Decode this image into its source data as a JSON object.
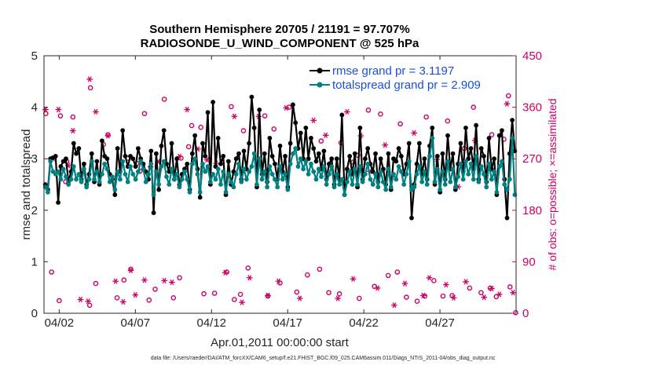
{
  "colors": {
    "rmse": "#000000",
    "spread": "#008080",
    "obs": "#cc0066",
    "legend_text": "#1a4fd6",
    "axis": "#262626"
  },
  "chart_data": {
    "type": "line",
    "title": [
      "Southern Hemisphere 20705 / 21191 = 97.707%",
      "RADIOSONDE_U_WIND_COMPONENT @ 525 hPa"
    ],
    "xlabel": "Apr.01,2011 00:00:00 start",
    "ylabel": "rmse and totalspread",
    "ylabel_right": "# of obs: o=possible; ×=assimilated",
    "xlim": [
      0,
      31
    ],
    "ylim": [
      0,
      5
    ],
    "ylim_right": [
      0,
      450
    ],
    "xtick_values": [
      1,
      6,
      11,
      16,
      21,
      26
    ],
    "xtick_labels": [
      "04/02",
      "04/07",
      "04/12",
      "04/17",
      "04/22",
      "04/27"
    ],
    "ytick_values": [
      0,
      1,
      2,
      3,
      4,
      5
    ],
    "ytick_labels": [
      "0",
      "1",
      "2",
      "3",
      "4",
      "5"
    ],
    "ytick_right_values": [
      0,
      90,
      180,
      270,
      360,
      450
    ],
    "ytick_right_labels": [
      "0",
      "90",
      "180",
      "270",
      "360",
      "450"
    ],
    "legend": [
      "rmse grand pr = 3.1197",
      "totalspread grand pr = 2.909"
    ],
    "legend_position": "top-right",
    "footnote": "data file: /Users/raeder/DAI/ATM_forcXX/CAM6_setup/f.e21.FHIST_BGC.f09_025.CAM6assim.011/Diags_NTrS_2011-04/obs_diag_output.nc",
    "series": [
      {
        "name": "rmse",
        "values": [
          2.5,
          2.4,
          3.0,
          3.02,
          3.05,
          2.15,
          2.85,
          2.95,
          3.0,
          2.55,
          2.75,
          3.3,
          3.1,
          3.2,
          2.6,
          2.9,
          2.5,
          2.7,
          3.1,
          2.55,
          2.95,
          2.5,
          3.35,
          3.05,
          3.0,
          2.7,
          2.6,
          2.3,
          3.2,
          2.75,
          3.55,
          3.05,
          2.85,
          3.05,
          3.0,
          2.85,
          3.2,
          3.0,
          2.9,
          2.75,
          2.6,
          3.15,
          1.95,
          3.1,
          2.4,
          3.25,
          3.55,
          2.9,
          2.75,
          3.3,
          2.6,
          3.0,
          2.5,
          2.7,
          2.8,
          2.9,
          2.4,
          3.1,
          3.45,
          2.8,
          2.25,
          3.3,
          3.05,
          3.9,
          2.5,
          4.1,
          2.85,
          3.4,
          2.9,
          3.05,
          2.3,
          2.95,
          2.5,
          2.75,
          3.0,
          3.1,
          2.6,
          3.15,
          2.8,
          3.3,
          4.2,
          3.6,
          2.45,
          3.95,
          2.7,
          3.1,
          2.55,
          3.4,
          3.05,
          2.9,
          2.6,
          3.25,
          2.75,
          3.05,
          2.45,
          3.3,
          4.05,
          3.7,
          3.2,
          3.5,
          3.0,
          3.6,
          3.0,
          3.4,
          3.2,
          2.95,
          3.1,
          2.8,
          3.15,
          2.6,
          2.9,
          3.0,
          2.5,
          3.0,
          2.6,
          3.85,
          2.3,
          2.8,
          3.05,
          2.7,
          3.1,
          2.45,
          3.6,
          2.6,
          3.0,
          3.2,
          2.9,
          2.75,
          3.1,
          2.55,
          3.0,
          2.8,
          2.5,
          3.1,
          2.4,
          3.0,
          2.95,
          3.2,
          3.05,
          2.7,
          2.9,
          3.3,
          1.85,
          2.5,
          2.9,
          3.3,
          2.7,
          3.0,
          2.6,
          3.25,
          3.6,
          2.5,
          3.05,
          2.35,
          3.1,
          2.6,
          3.45,
          2.8,
          3.1,
          2.4,
          2.9,
          3.3,
          2.75,
          3.6,
          3.0,
          3.2,
          2.8,
          3.65,
          2.6,
          3.2,
          3.05,
          2.55,
          3.4,
          2.8,
          3.0,
          2.3,
          3.45,
          3.55,
          2.6,
          1.85,
          3.1,
          3.75,
          3.15
        ]
      },
      {
        "name": "totalspread",
        "values": [
          2.45,
          2.35,
          2.95,
          2.75,
          2.7,
          2.75,
          2.6,
          2.8,
          2.65,
          2.5,
          2.6,
          2.85,
          2.6,
          2.7,
          2.55,
          2.8,
          2.45,
          2.6,
          2.95,
          2.6,
          2.75,
          2.55,
          2.7,
          2.9,
          2.8,
          2.55,
          2.65,
          2.4,
          2.75,
          2.6,
          2.95,
          2.7,
          2.55,
          2.85,
          2.7,
          2.6,
          2.75,
          2.95,
          2.8,
          2.55,
          2.7,
          2.9,
          2.3,
          2.75,
          2.5,
          2.85,
          2.95,
          2.65,
          2.5,
          2.8,
          2.6,
          2.7,
          2.45,
          2.6,
          2.75,
          2.6,
          2.35,
          2.9,
          3.0,
          2.7,
          2.35,
          2.9,
          2.75,
          2.85,
          2.55,
          2.7,
          2.6,
          2.8,
          2.5,
          2.75,
          2.35,
          2.7,
          2.55,
          2.45,
          2.7,
          2.9,
          2.55,
          2.8,
          2.6,
          2.75,
          2.85,
          3.1,
          2.5,
          3.0,
          2.6,
          2.75,
          2.45,
          2.85,
          2.7,
          2.6,
          2.45,
          2.85,
          2.6,
          2.7,
          2.4,
          2.9,
          3.1,
          3.2,
          2.85,
          3.0,
          2.8,
          2.95,
          2.7,
          2.9,
          2.75,
          2.6,
          2.8,
          2.65,
          2.85,
          2.5,
          2.7,
          2.85,
          2.45,
          2.7,
          2.5,
          2.6,
          2.3,
          2.55,
          2.75,
          2.5,
          2.8,
          2.5,
          2.85,
          2.55,
          2.7,
          2.9,
          2.6,
          2.5,
          2.7,
          2.45,
          2.75,
          2.55,
          2.4,
          2.8,
          2.45,
          2.7,
          2.6,
          2.85,
          2.75,
          2.5,
          2.7,
          2.95,
          2.4,
          2.45,
          2.7,
          2.85,
          2.55,
          2.75,
          2.5,
          3.05,
          3.4,
          2.55,
          2.8,
          2.4,
          2.75,
          2.5,
          2.95,
          2.55,
          2.8,
          2.45,
          2.65,
          2.9,
          2.6,
          2.95,
          2.7,
          2.9,
          2.6,
          3.05,
          2.55,
          2.85,
          2.7,
          2.45,
          2.9,
          2.6,
          2.75,
          2.35,
          2.85,
          2.95,
          2.5,
          2.4,
          2.6,
          3.4,
          2.3
        ]
      },
      {
        "name": "obs possible",
        "axis": "right",
        "points": [
          [
            0.12,
            349
          ],
          [
            0.5,
            72
          ],
          [
            1.0,
            22
          ],
          [
            1.5,
            265
          ],
          [
            1.9,
            343
          ],
          [
            3.0,
            14
          ],
          [
            3.4,
            52
          ],
          [
            4.2,
            312
          ],
          [
            4.8,
            27
          ],
          [
            5.25,
            58
          ],
          [
            5.7,
            77
          ],
          [
            6.1,
            262
          ],
          [
            6.9,
            23
          ],
          [
            7.3,
            42
          ],
          [
            7.9,
            374
          ],
          [
            8.5,
            27
          ],
          [
            8.9,
            62
          ],
          [
            9.7,
            328
          ],
          [
            10.5,
            34
          ],
          [
            11.2,
            35
          ],
          [
            12.0,
            72
          ],
          [
            12.5,
            24
          ],
          [
            12.9,
            33
          ],
          [
            13.4,
            79
          ],
          [
            14.7,
            30
          ],
          [
            15.1,
            322
          ],
          [
            15.5,
            53
          ],
          [
            16.6,
            37
          ],
          [
            17.3,
            67
          ],
          [
            18.1,
            77
          ],
          [
            18.7,
            36
          ],
          [
            19.4,
            34
          ],
          [
            20.3,
            264
          ],
          [
            20.7,
            26
          ],
          [
            21.7,
            47
          ],
          [
            22.6,
            66
          ],
          [
            23.2,
            72
          ],
          [
            23.8,
            28
          ],
          [
            24.5,
            21
          ],
          [
            25.0,
            30
          ],
          [
            25.6,
            57
          ],
          [
            26.2,
            30
          ],
          [
            26.8,
            31
          ],
          [
            27.6,
            288
          ],
          [
            27.95,
            44
          ],
          [
            28.7,
            36
          ],
          [
            29.3,
            44
          ],
          [
            29.7,
            29
          ],
          [
            30.2,
            304
          ],
          [
            30.6,
            46
          ],
          [
            30.97,
            1
          ],
          [
            1.08,
            345
          ],
          [
            3.05,
            394
          ],
          [
            3.9,
            295
          ],
          [
            5.5,
            271
          ],
          [
            6.6,
            349
          ],
          [
            9.0,
            271
          ],
          [
            9.5,
            291
          ],
          [
            10.3,
            325
          ],
          [
            12.3,
            361
          ],
          [
            13.1,
            319
          ],
          [
            14.5,
            345
          ],
          [
            16.1,
            360
          ],
          [
            18.2,
            301
          ],
          [
            19.5,
            298
          ],
          [
            20.6,
            276
          ],
          [
            21.3,
            355
          ],
          [
            22.1,
            348
          ],
          [
            23.4,
            331
          ],
          [
            25.1,
            343
          ],
          [
            26.5,
            336
          ],
          [
            28.2,
            360
          ],
          [
            29.4,
            312
          ],
          [
            30.5,
            380
          ],
          [
            1.42,
            230
          ],
          [
            6.3,
            248
          ]
        ]
      },
      {
        "name": "obs assimilated",
        "axis": "right",
        "points": [
          [
            0.1,
            356
          ],
          [
            0.6,
            270
          ],
          [
            0.95,
            356
          ],
          [
            1.6,
            258
          ],
          [
            1.9,
            319
          ],
          [
            2.4,
            24
          ],
          [
            2.9,
            21
          ],
          [
            3.0,
            409
          ],
          [
            3.4,
            352
          ],
          [
            4.2,
            310
          ],
          [
            4.7,
            56
          ],
          [
            5.2,
            20
          ],
          [
            5.7,
            75
          ],
          [
            6.0,
            32
          ],
          [
            6.6,
            58
          ],
          [
            7.0,
            256
          ],
          [
            7.5,
            265
          ],
          [
            7.9,
            57
          ],
          [
            8.4,
            54
          ],
          [
            8.9,
            274
          ],
          [
            9.4,
            356
          ],
          [
            10.1,
            287
          ],
          [
            10.7,
            268
          ],
          [
            11.3,
            262
          ],
          [
            11.9,
            71
          ],
          [
            12.5,
            344
          ],
          [
            13.0,
            19
          ],
          [
            13.5,
            62
          ],
          [
            14.1,
            344
          ],
          [
            14.7,
            31
          ],
          [
            15.4,
            56
          ],
          [
            15.9,
            359
          ],
          [
            16.8,
            26
          ],
          [
            17.7,
            337
          ],
          [
            18.5,
            311
          ],
          [
            19.3,
            26
          ],
          [
            19.9,
            352
          ],
          [
            20.3,
            60
          ],
          [
            20.8,
            310
          ],
          [
            21.4,
            248
          ],
          [
            21.9,
            44
          ],
          [
            22.4,
            294
          ],
          [
            23.0,
            14
          ],
          [
            23.7,
            52
          ],
          [
            24.3,
            315
          ],
          [
            24.9,
            31
          ],
          [
            25.3,
            62
          ],
          [
            25.8,
            269
          ],
          [
            26.4,
            50
          ],
          [
            26.9,
            27
          ],
          [
            27.2,
            221
          ],
          [
            27.7,
            55
          ],
          [
            28.3,
            302
          ],
          [
            28.9,
            28
          ],
          [
            29.4,
            43
          ],
          [
            29.9,
            33
          ],
          [
            30.4,
            366
          ],
          [
            30.8,
            36
          ]
        ]
      }
    ]
  }
}
